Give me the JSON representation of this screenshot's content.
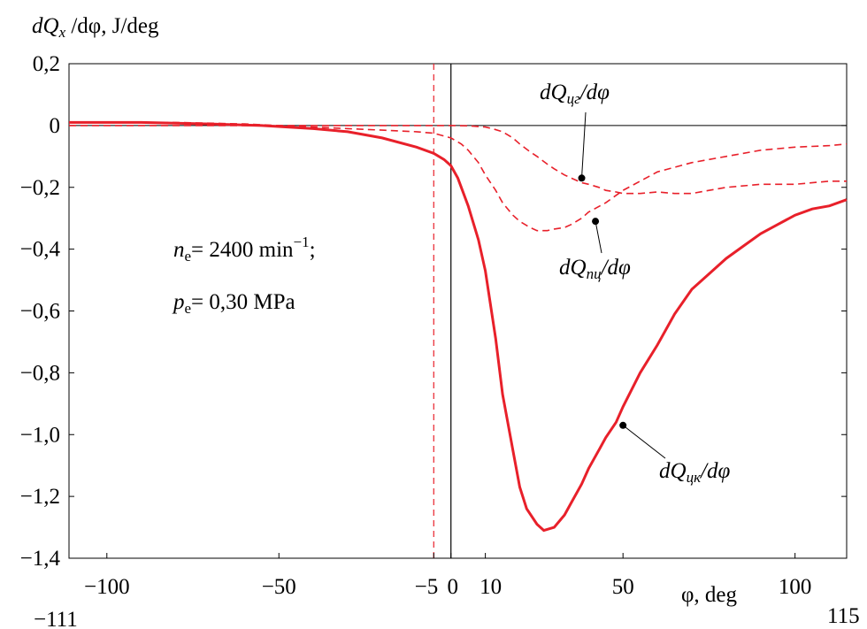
{
  "chart_data": {
    "type": "line",
    "ylabel_prefix": "dQ",
    "ylabel_sub": "x",
    "ylabel_rest": " /dφ, J/deg",
    "xlabel": "φ, deg",
    "xlim": [
      -111,
      115
    ],
    "ylim": [
      -1.4,
      0.2
    ],
    "x_ticks": [
      -100,
      -50,
      -5,
      0,
      10,
      50,
      100
    ],
    "x_tick_labels": [
      "−100",
      "−50",
      "−5",
      "0",
      "10",
      "50",
      "100"
    ],
    "x_limit_labels": [
      "−111",
      "115"
    ],
    "y_ticks": [
      0.2,
      0,
      -0.2,
      -0.4,
      -0.6,
      -0.8,
      -1.0,
      -1.2,
      -1.4
    ],
    "y_tick_labels": [
      "0,2",
      "0",
      "−0,2",
      "−0,4",
      "−0,6",
      "−0,8",
      "−1,0",
      "−1,2",
      "−1,4"
    ],
    "vertical_lines": [
      {
        "x": 0,
        "color": "#000000",
        "style": "solid"
      },
      {
        "x": -5,
        "color": "#e8202a",
        "style": "dashed"
      }
    ],
    "annotation": {
      "line1_a": "n",
      "line1_sub": "e",
      "line1_b": "= 2400  min",
      "line1_sup": "−1",
      "line1_c": ";",
      "line2_a": "p",
      "line2_sub": "e",
      "line2_b": "= 0,30  MPa"
    },
    "series": [
      {
        "name": "dQцк/dφ",
        "label_main": "dQ",
        "label_sub": "цк",
        "label_rest": "/dφ",
        "style": "solid",
        "color": "#e8202a",
        "marker": [
          50,
          -0.97
        ],
        "x": [
          -111,
          -90,
          -70,
          -55,
          -40,
          -30,
          -20,
          -10,
          -5,
          -2,
          0,
          2,
          5,
          8,
          10,
          13,
          15,
          18,
          20,
          22,
          25,
          27,
          30,
          33,
          35,
          38,
          40,
          43,
          45,
          48,
          50,
          55,
          60,
          65,
          70,
          75,
          80,
          85,
          90,
          95,
          100,
          105,
          110,
          115
        ],
        "y": [
          0.01,
          0.01,
          0.005,
          0,
          -0.01,
          -0.02,
          -0.04,
          -0.07,
          -0.09,
          -0.11,
          -0.13,
          -0.17,
          -0.26,
          -0.37,
          -0.47,
          -0.69,
          -0.87,
          -1.05,
          -1.17,
          -1.24,
          -1.29,
          -1.31,
          -1.3,
          -1.26,
          -1.22,
          -1.16,
          -1.11,
          -1.05,
          -1.01,
          -0.96,
          -0.91,
          -0.8,
          -0.71,
          -0.61,
          -0.53,
          -0.48,
          -0.43,
          -0.39,
          -0.35,
          -0.32,
          -0.29,
          -0.27,
          -0.26,
          -0.24
        ]
      },
      {
        "name": "dQпц/dφ",
        "label_main": "dQ",
        "label_sub": "пц",
        "label_rest": "/dφ",
        "style": "dashed",
        "color": "#e8202a",
        "marker": [
          42,
          -0.31
        ],
        "x": [
          -111,
          -80,
          -60,
          -50,
          -30,
          -20,
          -10,
          -5,
          0,
          3,
          5,
          8,
          10,
          13,
          15,
          18,
          20,
          23,
          25,
          28,
          30,
          33,
          35,
          38,
          40,
          45,
          50,
          55,
          60,
          70,
          80,
          90,
          100,
          110,
          115
        ],
        "y": [
          0.01,
          0.01,
          0.005,
          0,
          -0.01,
          -0.015,
          -0.02,
          -0.025,
          -0.04,
          -0.06,
          -0.08,
          -0.12,
          -0.16,
          -0.21,
          -0.25,
          -0.29,
          -0.31,
          -0.33,
          -0.34,
          -0.34,
          -0.335,
          -0.33,
          -0.32,
          -0.3,
          -0.28,
          -0.25,
          -0.21,
          -0.18,
          -0.15,
          -0.12,
          -0.1,
          -0.08,
          -0.07,
          -0.065,
          -0.06
        ]
      },
      {
        "name": "dQцг/dφ",
        "label_main": "dQ",
        "label_sub": "цг",
        "label_rest": "/dφ",
        "style": "dashed",
        "color": "#e8202a",
        "marker": [
          38,
          -0.17
        ],
        "x": [
          -111,
          -50,
          0,
          5,
          10,
          12,
          15,
          18,
          20,
          23,
          25,
          28,
          30,
          33,
          35,
          38,
          40,
          43,
          45,
          48,
          50,
          55,
          60,
          65,
          70,
          75,
          80,
          90,
          100,
          110,
          115
        ],
        "y": [
          0,
          0,
          0,
          -0.001,
          -0.005,
          -0.01,
          -0.02,
          -0.04,
          -0.06,
          -0.085,
          -0.1,
          -0.125,
          -0.14,
          -0.16,
          -0.17,
          -0.185,
          -0.19,
          -0.2,
          -0.21,
          -0.215,
          -0.22,
          -0.22,
          -0.215,
          -0.22,
          -0.22,
          -0.21,
          -0.2,
          -0.19,
          -0.19,
          -0.18,
          -0.18
        ]
      }
    ]
  }
}
